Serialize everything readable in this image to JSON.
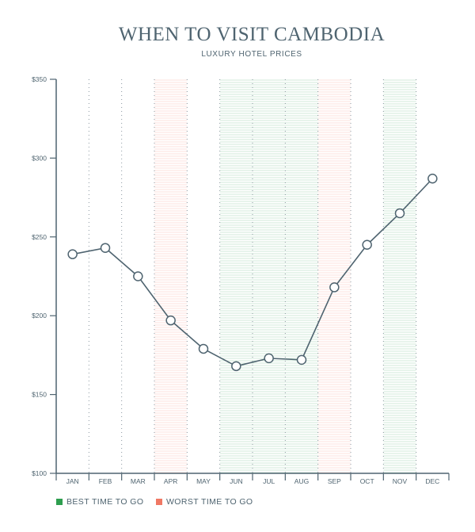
{
  "header": {
    "title": "WHEN TO VISIT CAMBODIA",
    "subtitle": "LUXURY HOTEL PRICES"
  },
  "legend": {
    "best": {
      "label": "BEST TIME TO GO",
      "color": "#2e9e4f"
    },
    "worst": {
      "label": "WORST TIME TO GO",
      "color": "#f07864"
    }
  },
  "chart_data": {
    "type": "line",
    "title": "WHEN TO VISIT CAMBODIA",
    "subtitle": "LUXURY HOTEL PRICES",
    "categories": [
      "JAN",
      "FEB",
      "MAR",
      "APR",
      "MAY",
      "JUN",
      "JUL",
      "AUG",
      "SEP",
      "OCT",
      "NOV",
      "DEC"
    ],
    "series": [
      {
        "values": [
          239,
          243,
          225,
          197,
          179,
          168,
          173,
          172,
          218,
          245,
          265,
          287
        ]
      }
    ],
    "ylim": [
      100,
      350
    ],
    "yticks": [
      100,
      150,
      200,
      250,
      300,
      350
    ],
    "ytick_labels": [
      "$100",
      "$150",
      "$200",
      "$250",
      "$300",
      "$350"
    ],
    "highlight_bands": [
      {
        "start": "APR",
        "end": "APR",
        "kind": "worst"
      },
      {
        "start": "JUN",
        "end": "AUG",
        "kind": "best"
      },
      {
        "start": "SEP",
        "end": "SEP",
        "kind": "worst"
      },
      {
        "start": "NOV",
        "end": "NOV",
        "kind": "best"
      }
    ],
    "colors": {
      "line": "#4f6470",
      "axis": "#4f6470",
      "best": "#2e9e4f",
      "worst": "#f07864"
    }
  }
}
